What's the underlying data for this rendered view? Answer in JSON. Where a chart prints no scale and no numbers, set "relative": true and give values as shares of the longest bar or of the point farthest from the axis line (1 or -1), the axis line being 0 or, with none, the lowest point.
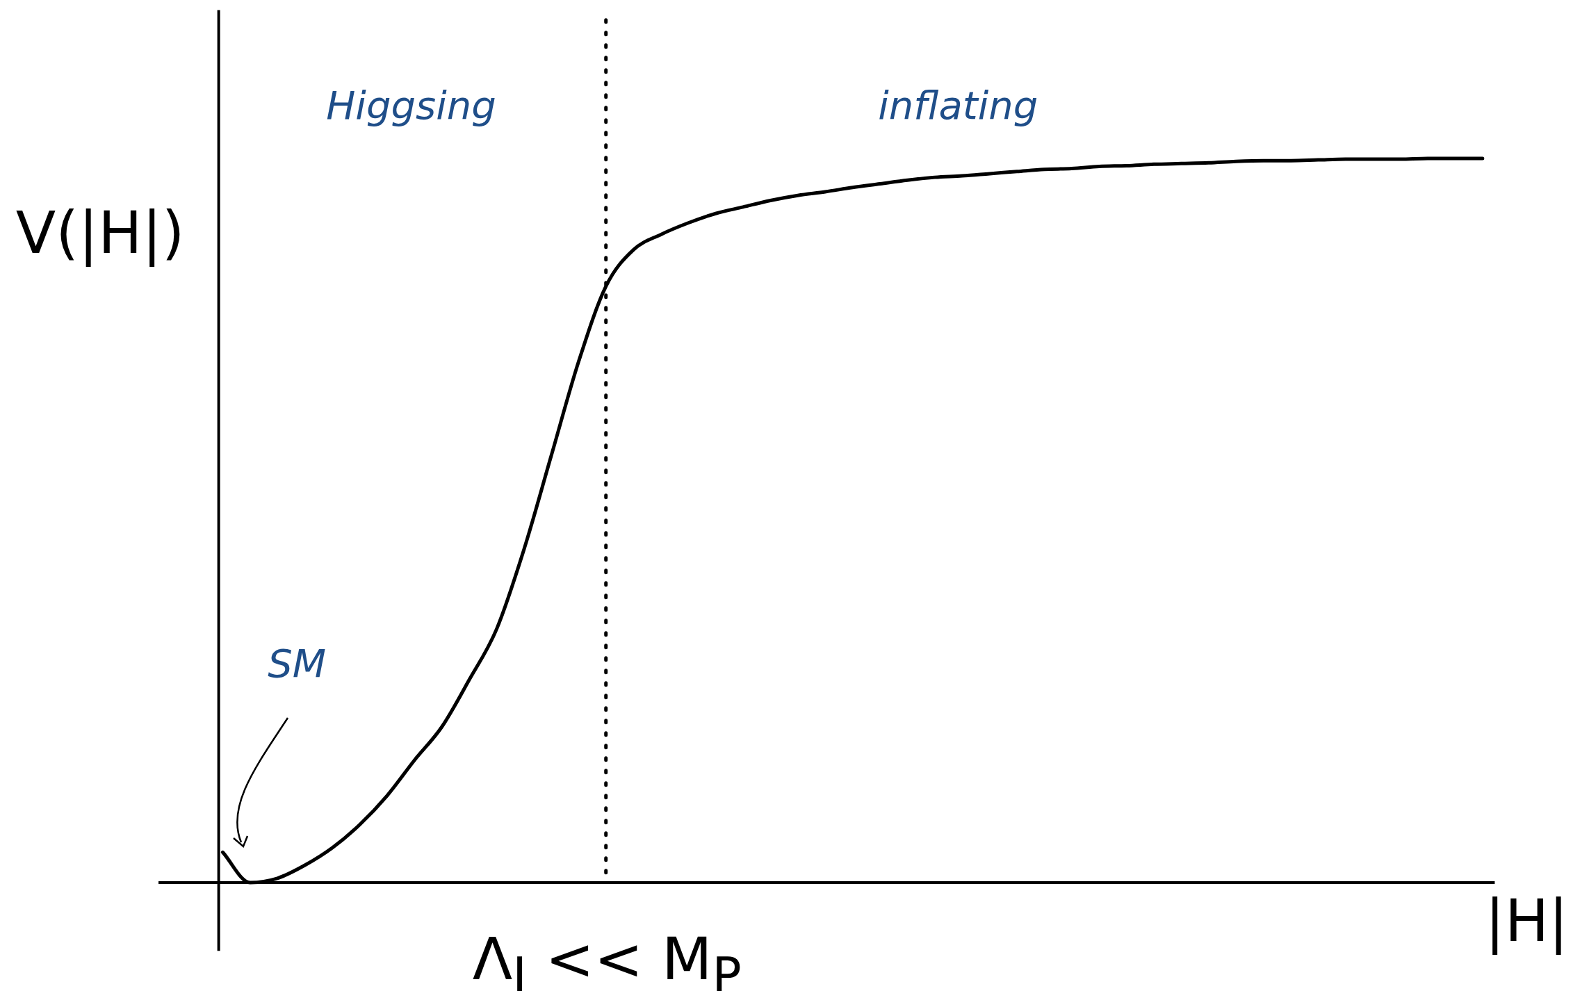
{
  "chart_data": {
    "type": "line",
    "relative": true,
    "ylabel": "V(|H|)",
    "xlabel": "|H|",
    "marker": "none",
    "line_style": "solid",
    "categories": [
      null,
      null,
      null,
      null,
      null,
      null,
      null,
      null,
      null,
      null,
      null,
      null,
      null,
      null,
      null,
      null,
      null,
      null,
      null,
      null,
      null,
      null,
      null,
      null,
      null,
      null,
      null,
      null,
      null,
      null,
      null,
      null,
      null,
      null,
      null,
      null,
      null,
      null,
      null,
      null,
      null,
      null,
      null,
      null,
      null,
      null,
      null
    ],
    "series": [
      {
        "color": "#000000",
        "values": [
          0.042,
          0,
          0.006,
          0.024,
          0.048,
          0.08,
          0.12,
          0.169,
          0.215,
          0.28,
          0.35,
          0.46,
          0.59,
          0.72,
          0.824,
          0.874,
          0.895,
          0.911,
          0.924,
          0.933,
          0.942,
          0.949,
          0.954,
          0.96,
          0.965,
          0.97,
          0.974,
          0.976,
          0.979,
          0.982,
          0.985,
          0.986,
          0.989,
          0.99,
          0.992,
          0.993,
          0.994,
          0.996,
          0.997,
          0.997,
          0.998,
          0.999,
          0.999,
          0.999,
          1,
          1,
          1
        ]
      }
    ],
    "annotations": [
      "Higgsing",
      "inflating",
      "SM",
      "Λ$_{I}$ << M$_{P}$"
    ]
  }
}
